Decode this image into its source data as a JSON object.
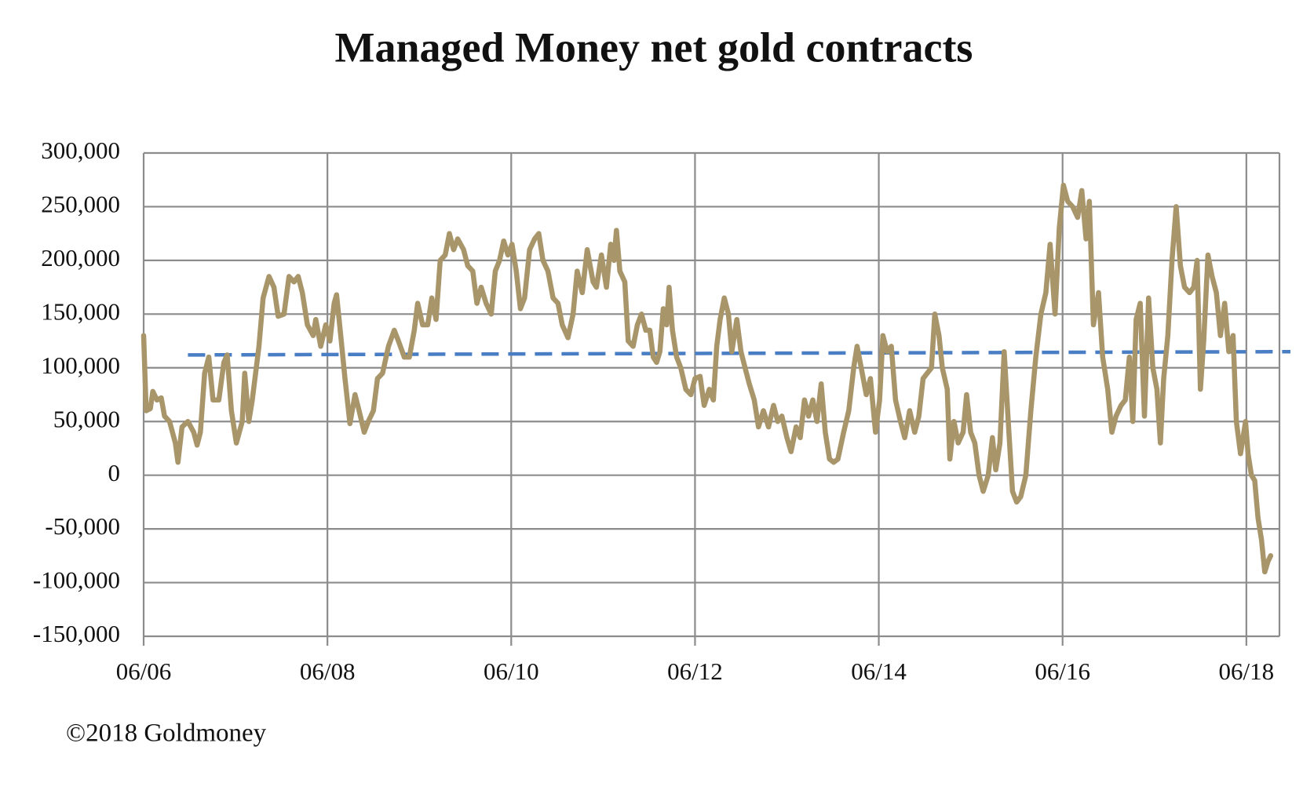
{
  "chart_data": {
    "type": "line",
    "title": "Managed Money net gold contracts",
    "source": "©2018 Goldmoney",
    "xlim": [
      2006.42,
      2018.78
    ],
    "xticks": [
      {
        "value": 2006.42,
        "label": "06/06"
      },
      {
        "value": 2008.42,
        "label": "06/08"
      },
      {
        "value": 2010.42,
        "label": "06/10"
      },
      {
        "value": 2012.42,
        "label": "06/12"
      },
      {
        "value": 2014.42,
        "label": "06/14"
      },
      {
        "value": 2016.42,
        "label": "06/16"
      },
      {
        "value": 2018.42,
        "label": "06/18"
      }
    ],
    "ylim": [
      -150000,
      300000
    ],
    "yticks": [
      {
        "value": -150000,
        "label": "-150,000"
      },
      {
        "value": -100000,
        "label": "-100,000"
      },
      {
        "value": -50000,
        "label": "-50,000"
      },
      0,
      {
        "value": 50000,
        "label": "50,000"
      },
      {
        "value": 100000,
        "label": "100,000"
      },
      {
        "value": 150000,
        "label": "150,000"
      },
      {
        "value": 200000,
        "label": "200,000"
      },
      {
        "value": 250000,
        "label": "250,000"
      },
      {
        "value": 300000,
        "label": "300,000"
      }
    ],
    "grid": true,
    "x": [
      2006.42,
      2006.447,
      2006.493,
      2006.52,
      2006.565,
      2006.611,
      2006.647,
      2006.702,
      2006.765,
      2006.793,
      2006.838,
      2006.902,
      2006.965,
      2007.002,
      2007.038,
      2007.084,
      2007.129,
      2007.175,
      2007.238,
      2007.293,
      2007.329,
      2007.375,
      2007.429,
      2007.493,
      2007.52,
      2007.565,
      2007.602,
      2007.675,
      2007.72,
      2007.784,
      2007.838,
      2007.884,
      2007.947,
      2008.002,
      2008.056,
      2008.102,
      2008.147,
      2008.202,
      2008.265,
      2008.293,
      2008.347,
      2008.402,
      2008.447,
      2008.493,
      2008.52,
      2008.565,
      2008.611,
      2008.665,
      2008.72,
      2008.765,
      2008.82,
      2008.865,
      2008.92,
      2008.965,
      2009.02,
      2009.084,
      2009.147,
      2009.193,
      2009.256,
      2009.311,
      2009.365,
      2009.402,
      2009.456,
      2009.511,
      2009.556,
      2009.602,
      2009.647,
      2009.702,
      2009.747,
      2009.793,
      2009.838,
      2009.902,
      2009.947,
      2010.002,
      2010.047,
      2010.093,
      2010.147,
      2010.202,
      2010.247,
      2010.293,
      2010.338,
      2010.384,
      2010.429,
      2010.475,
      2010.52,
      2010.565,
      2010.62,
      2010.675,
      2010.72,
      2010.765,
      2010.82,
      2010.875,
      2010.929,
      2010.975,
      2011.038,
      2011.093,
      2011.138,
      2011.193,
      2011.247,
      2011.311,
      2011.347,
      2011.402,
      2011.456,
      2011.502,
      2011.538,
      2011.565,
      2011.602,
      2011.656,
      2011.693,
      2011.747,
      2011.793,
      2011.838,
      2011.884,
      2011.929,
      2011.965,
      2012.002,
      2012.038,
      2012.075,
      2012.111,
      2012.138,
      2012.175,
      2012.22,
      2012.265,
      2012.32,
      2012.375,
      2012.42,
      2012.475,
      2012.52,
      2012.575,
      2012.62,
      2012.656,
      2012.693,
      2012.738,
      2012.784,
      2012.82,
      2012.875,
      2012.92,
      2012.965,
      2013.011,
      2013.065,
      2013.111,
      2013.165,
      2013.22,
      2013.275,
      2013.32,
      2013.365,
      2013.42,
      2013.465,
      2013.52,
      2013.565,
      2013.611,
      2013.656,
      2013.702,
      2013.747,
      2013.793,
      2013.838,
      2013.884,
      2013.929,
      2013.975,
      2014.038,
      2014.093,
      2014.147,
      2014.184,
      2014.229,
      2014.284,
      2014.329,
      2014.384,
      2014.429,
      2014.465,
      2014.511,
      2014.556,
      2014.602,
      2014.656,
      2014.702,
      2014.756,
      2014.811,
      2014.856,
      2014.902,
      2014.947,
      2014.993,
      2015.029,
      2015.075,
      2015.111,
      2015.165,
      2015.193,
      2015.238,
      2015.284,
      2015.338,
      2015.375,
      2015.42,
      2015.465,
      2015.511,
      2015.556,
      2015.611,
      2015.656,
      2015.693,
      2015.738,
      2015.784,
      2015.829,
      2015.875,
      2015.92,
      2015.965,
      2016.02,
      2016.075,
      2016.129,
      2016.184,
      2016.238,
      2016.284,
      2016.338,
      2016.384,
      2016.429,
      2016.475,
      2016.529,
      2016.584,
      2016.629,
      2016.675,
      2016.711,
      2016.756,
      2016.811,
      2016.856,
      2016.911,
      2016.956,
      2017.002,
      2017.056,
      2017.102,
      2017.147,
      2017.184,
      2017.22,
      2017.265,
      2017.311,
      2017.356,
      2017.402,
      2017.447,
      2017.484,
      2017.52,
      2017.565,
      2017.611,
      2017.656,
      2017.702,
      2017.747,
      2017.802,
      2017.847,
      2017.884,
      2017.92,
      2017.956,
      2018.002,
      2018.047,
      2018.093,
      2018.138,
      2018.184,
      2018.229,
      2018.275,
      2018.311,
      2018.356,
      2018.411,
      2018.438,
      2018.475,
      2018.511,
      2018.547,
      2018.584,
      2018.62,
      2018.656,
      2018.684
    ],
    "series": [
      {
        "color": "#a8956a",
        "values": [
          130000,
          60000,
          62000,
          78000,
          70000,
          72000,
          55000,
          50000,
          30000,
          12000,
          45000,
          50000,
          40000,
          28000,
          40000,
          95000,
          110000,
          70000,
          70000,
          105000,
          112000,
          60000,
          30000,
          50000,
          95000,
          50000,
          70000,
          120000,
          165000,
          185000,
          175000,
          148000,
          150000,
          185000,
          180000,
          185000,
          170000,
          140000,
          130000,
          145000,
          120000,
          140000,
          125000,
          160000,
          168000,
          130000,
          90000,
          48000,
          75000,
          60000,
          40000,
          50000,
          60000,
          90000,
          95000,
          120000,
          135000,
          125000,
          110000,
          110000,
          135000,
          160000,
          140000,
          140000,
          165000,
          145000,
          200000,
          205000,
          225000,
          210000,
          220000,
          210000,
          195000,
          190000,
          160000,
          175000,
          160000,
          150000,
          190000,
          200000,
          218000,
          205000,
          215000,
          190000,
          155000,
          165000,
          210000,
          220000,
          225000,
          200000,
          190000,
          165000,
          160000,
          140000,
          128000,
          150000,
          190000,
          170000,
          210000,
          180000,
          175000,
          205000,
          175000,
          215000,
          200000,
          228000,
          190000,
          180000,
          125000,
          120000,
          140000,
          150000,
          135000,
          135000,
          110000,
          105000,
          115000,
          155000,
          140000,
          175000,
          135000,
          110000,
          100000,
          80000,
          75000,
          90000,
          92000,
          65000,
          80000,
          70000,
          120000,
          145000,
          165000,
          150000,
          115000,
          145000,
          115000,
          100000,
          85000,
          70000,
          45000,
          60000,
          45000,
          65000,
          50000,
          55000,
          35000,
          22000,
          45000,
          35000,
          70000,
          55000,
          70000,
          50000,
          85000,
          40000,
          15000,
          12000,
          15000,
          40000,
          60000,
          100000,
          120000,
          100000,
          75000,
          90000,
          40000,
          70000,
          130000,
          115000,
          120000,
          70000,
          50000,
          35000,
          60000,
          40000,
          55000,
          90000,
          95000,
          100000,
          150000,
          130000,
          100000,
          80000,
          15000,
          50000,
          30000,
          40000,
          75000,
          40000,
          30000,
          0,
          -15000,
          0,
          35000,
          5000,
          30000,
          115000,
          50000,
          -15000,
          -25000,
          -20000,
          0,
          60000,
          110000,
          150000,
          170000,
          215000,
          150000,
          230000,
          270000,
          255000,
          250000,
          240000,
          265000,
          220000,
          255000,
          140000,
          170000,
          110000,
          80000,
          40000,
          55000,
          65000,
          70000,
          110000,
          50000,
          145000,
          160000,
          55000,
          165000,
          100000,
          80000,
          30000,
          90000,
          130000,
          200000,
          250000,
          195000,
          175000,
          170000,
          175000,
          200000,
          80000,
          125000,
          205000,
          185000,
          170000,
          130000,
          160000,
          115000,
          130000,
          50000,
          20000,
          50000,
          20000,
          0,
          -5000,
          -40000,
          -60000,
          -90000,
          -80000,
          -75000
        ]
      }
    ],
    "reference_line": {
      "x": [
        2006.902,
        2018.9
      ],
      "values": [
        112000,
        115000
      ],
      "color": "#4a7ec4",
      "dashed": true
    }
  }
}
